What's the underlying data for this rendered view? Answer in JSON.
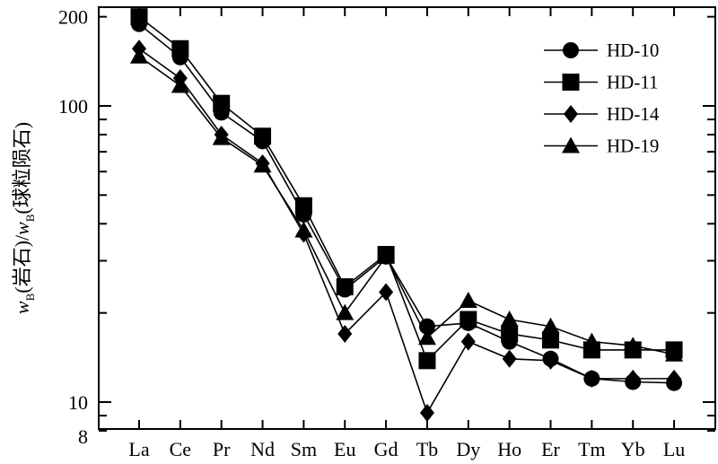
{
  "chart_data": {
    "type": "line",
    "title": "",
    "xlabel": "",
    "ylabel": {
      "w1": "w",
      "sub1": "B",
      "text1": "(岩石)/",
      "w2": "w",
      "sub2": "B",
      "text2": "(球粒陨石)"
    },
    "yscale": "log",
    "ylim": [
      8,
      250
    ],
    "yticks": [
      {
        "value": 8,
        "label": "8"
      },
      {
        "value": 10,
        "label": "10"
      },
      {
        "value": 100,
        "label": "100"
      },
      {
        "value": 200,
        "label": "200"
      }
    ],
    "categories": [
      "La",
      "Ce",
      "Pr",
      "Nd",
      "Sm",
      "Eu",
      "Gd",
      "Tb",
      "Dy",
      "Ho",
      "Er",
      "Tm",
      "Yb",
      "Lu"
    ],
    "grid": false,
    "legend_position": "top-right",
    "series": [
      {
        "name": "HD-10",
        "marker": "circle",
        "values": [
          189,
          146,
          95,
          76,
          43,
          24,
          31,
          18,
          18.5,
          16,
          14,
          12,
          11.7,
          11.6
        ]
      },
      {
        "name": "HD-11",
        "marker": "square",
        "values": [
          200,
          156,
          102,
          79,
          46,
          24.5,
          31.5,
          13.8,
          19,
          17,
          16.2,
          15,
          15,
          15
        ]
      },
      {
        "name": "HD-14",
        "marker": "diamond",
        "values": [
          156,
          124,
          80,
          64,
          37,
          17,
          23.5,
          9.2,
          16,
          14,
          13.8,
          12,
          12,
          12
        ]
      },
      {
        "name": "HD-19",
        "marker": "triangle",
        "values": [
          147,
          117,
          78,
          63,
          38,
          20,
          31,
          16.5,
          22,
          19,
          18,
          16,
          15.5,
          14.5
        ]
      }
    ],
    "colors": {
      "stroke": "#000000",
      "background": "#ffffff"
    }
  }
}
